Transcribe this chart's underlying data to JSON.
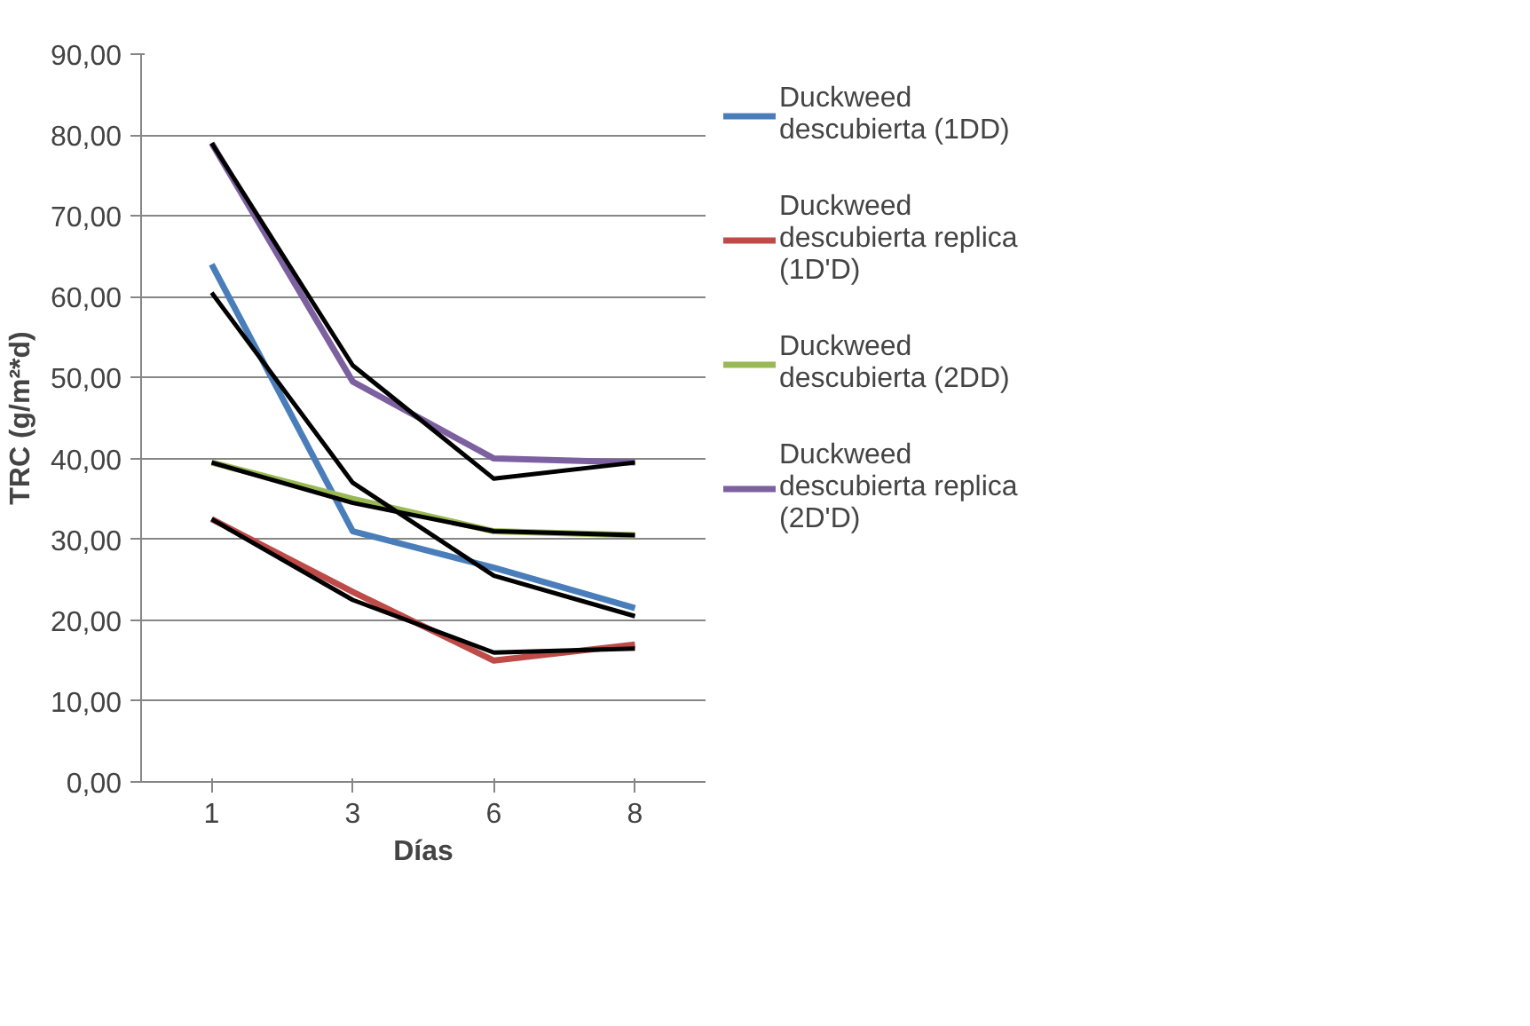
{
  "chart_data": {
    "type": "line",
    "xlabel": "Días",
    "ylabel": "TRC (g/m²*d)",
    "categories": [
      "1",
      "3",
      "6",
      "8"
    ],
    "ylim": [
      0,
      90
    ],
    "yticks": [
      {
        "value": 0,
        "label": "0,00"
      },
      {
        "value": 10,
        "label": "10,00"
      },
      {
        "value": 20,
        "label": "20,00"
      },
      {
        "value": 30,
        "label": "30,00"
      },
      {
        "value": 40,
        "label": "40,00"
      },
      {
        "value": 50,
        "label": "50,00"
      },
      {
        "value": 60,
        "label": "60,00"
      },
      {
        "value": 70,
        "label": "70,00"
      },
      {
        "value": 80,
        "label": "80,00"
      },
      {
        "value": 90,
        "label": "90,00"
      }
    ],
    "grid": "y",
    "legend": "right",
    "marker": "none",
    "series": [
      {
        "name": "Duckweed descubierta (1DD)",
        "color": "#4a7ebb",
        "values": [
          64,
          31,
          26.5,
          21.5
        ]
      },
      {
        "name": "Duckweed descubierta replica (1D'D)",
        "color": "#be4b48",
        "values": [
          32.5,
          23.5,
          15,
          17
        ]
      },
      {
        "name": "Duckweed descubierta (2DD)",
        "color": "#98b954",
        "values": [
          39.5,
          35,
          31,
          30.5
        ]
      },
      {
        "name": "Duckweed descubierta replica (2D'D)",
        "color": "#7d60a0",
        "values": [
          79,
          49.5,
          40,
          39.5
        ]
      },
      {
        "color": "#000000",
        "values": [
          60.5,
          37,
          25.5,
          20.5
        ]
      },
      {
        "color": "#000000",
        "values": [
          32.5,
          22.5,
          16,
          16.5
        ]
      },
      {
        "color": "#000000",
        "values": [
          39.5,
          34.5,
          31,
          30.5
        ]
      },
      {
        "color": "#000000",
        "values": [
          79,
          51.5,
          37.5,
          39.5
        ]
      }
    ]
  }
}
